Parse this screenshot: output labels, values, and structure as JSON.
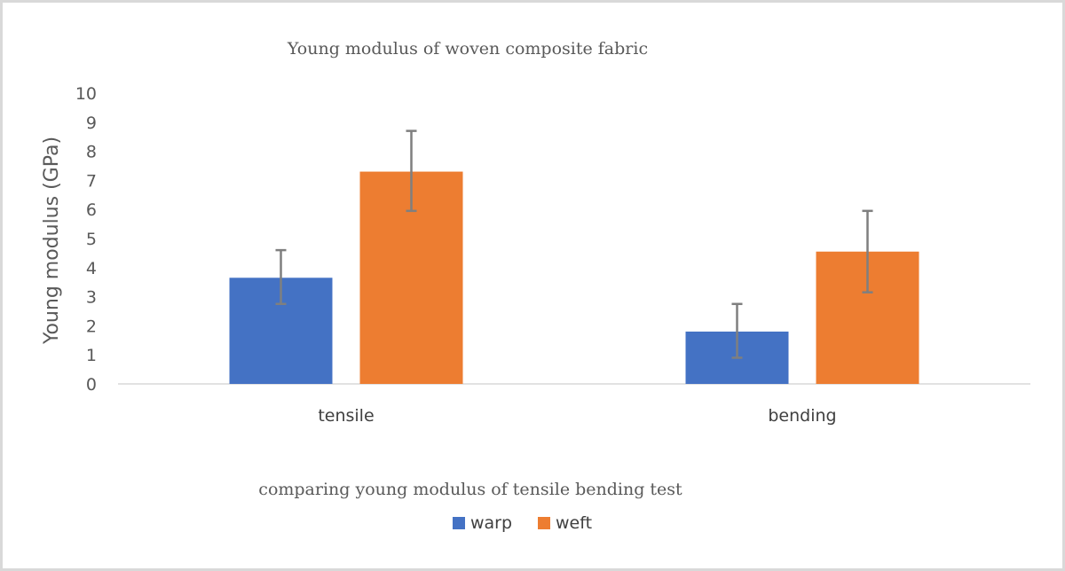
{
  "chart_data": {
    "type": "bar",
    "title": "Young modulus of woven composite fabric",
    "xlabel": "comparing  young modulus of tensile bending test",
    "ylabel": "Young modulus (GPa)",
    "ylim": [
      0,
      10
    ],
    "yticks": [
      "0",
      "1",
      "2",
      "3",
      "4",
      "5",
      "6",
      "7",
      "8",
      "9",
      "10"
    ],
    "categories": [
      "tensile",
      "bending"
    ],
    "series": [
      {
        "name": "warp",
        "color": "#4472c4",
        "values": [
          3.65,
          1.8
        ],
        "error_low": [
          2.75,
          0.9
        ],
        "error_high": [
          4.6,
          2.75
        ]
      },
      {
        "name": "weft",
        "color": "#ed7d31",
        "values": [
          7.3,
          4.55
        ],
        "error_low": [
          5.95,
          3.15
        ],
        "error_high": [
          8.7,
          5.95
        ]
      }
    ],
    "error_bar_color": "#7f7f7f",
    "grid": false,
    "legend_position": "bottom"
  }
}
